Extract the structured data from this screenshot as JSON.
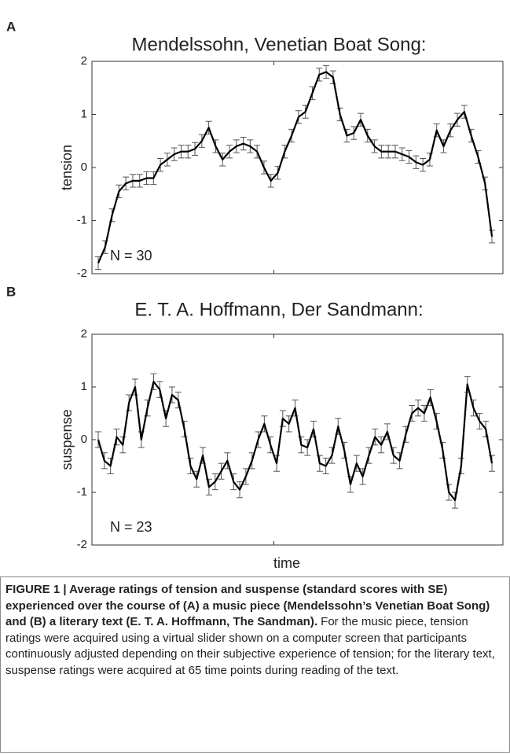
{
  "chart_data": [
    {
      "type": "line",
      "panel": "A",
      "title": "Mendelssohn, Venetian Boat Song:",
      "ylabel": "tension",
      "annotation": "N = 30",
      "ylim": [
        -2,
        2
      ],
      "yticks": [
        -2,
        -1,
        0,
        1,
        2
      ],
      "error": 0.12,
      "series": [
        {
          "color": "#000000",
          "values": [
            -1.8,
            -1.5,
            -0.9,
            -0.45,
            -0.3,
            -0.25,
            -0.25,
            -0.2,
            -0.2,
            0.05,
            0.15,
            0.25,
            0.3,
            0.3,
            0.35,
            0.5,
            0.75,
            0.4,
            0.15,
            0.3,
            0.4,
            0.45,
            0.4,
            0.3,
            0.0,
            -0.25,
            -0.1,
            0.3,
            0.6,
            0.95,
            1.05,
            1.4,
            1.75,
            1.8,
            1.7,
            1.0,
            0.6,
            0.65,
            0.9,
            0.6,
            0.4,
            0.3,
            0.3,
            0.3,
            0.25,
            0.2,
            0.1,
            0.05,
            0.15,
            0.7,
            0.4,
            0.7,
            0.9,
            1.05,
            0.6,
            0.2,
            -0.3,
            -1.3
          ]
        }
      ]
    },
    {
      "type": "line",
      "panel": "B",
      "title": "E. T. A. Hoffmann, Der Sandmann:",
      "ylabel": "suspense",
      "xlabel": "time",
      "annotation": "N = 23",
      "ylim": [
        -2,
        2
      ],
      "yticks": [
        -2,
        -1,
        0,
        1,
        2
      ],
      "error": 0.15,
      "series": [
        {
          "color": "#000000",
          "values": [
            0.0,
            -0.4,
            -0.5,
            0.05,
            -0.1,
            0.7,
            1.0,
            0.0,
            0.6,
            1.1,
            0.95,
            0.4,
            0.85,
            0.75,
            0.2,
            -0.5,
            -0.75,
            -0.3,
            -0.9,
            -0.8,
            -0.6,
            -0.4,
            -0.8,
            -0.95,
            -0.7,
            -0.4,
            0.0,
            0.3,
            -0.1,
            -0.45,
            0.4,
            0.3,
            0.6,
            -0.1,
            -0.15,
            0.2,
            -0.45,
            -0.5,
            -0.3,
            0.25,
            -0.2,
            -0.85,
            -0.45,
            -0.7,
            -0.3,
            0.05,
            -0.1,
            0.15,
            -0.3,
            -0.4,
            0.1,
            0.5,
            0.6,
            0.5,
            0.8,
            0.35,
            -0.2,
            -1.0,
            -1.15,
            -0.5,
            1.05,
            0.6,
            0.35,
            0.2,
            -0.45
          ]
        }
      ]
    }
  ],
  "caption": {
    "bold": "FIGURE 1 | Average ratings of tension and suspense (standard scores with SE) experienced over the course of (A) a music piece (Mendelssohn’s Venetian Boat Song) and (B) a literary text (E. T. A. Hoffmann, The Sandman).",
    "text": "For the music piece, tension ratings were acquired using a virtual slider shown on a computer screen that participants continuously adjusted depending on their subjective experience of tension; for the literary text, suspense ratings were acquired at 65 time points during reading of the text."
  }
}
